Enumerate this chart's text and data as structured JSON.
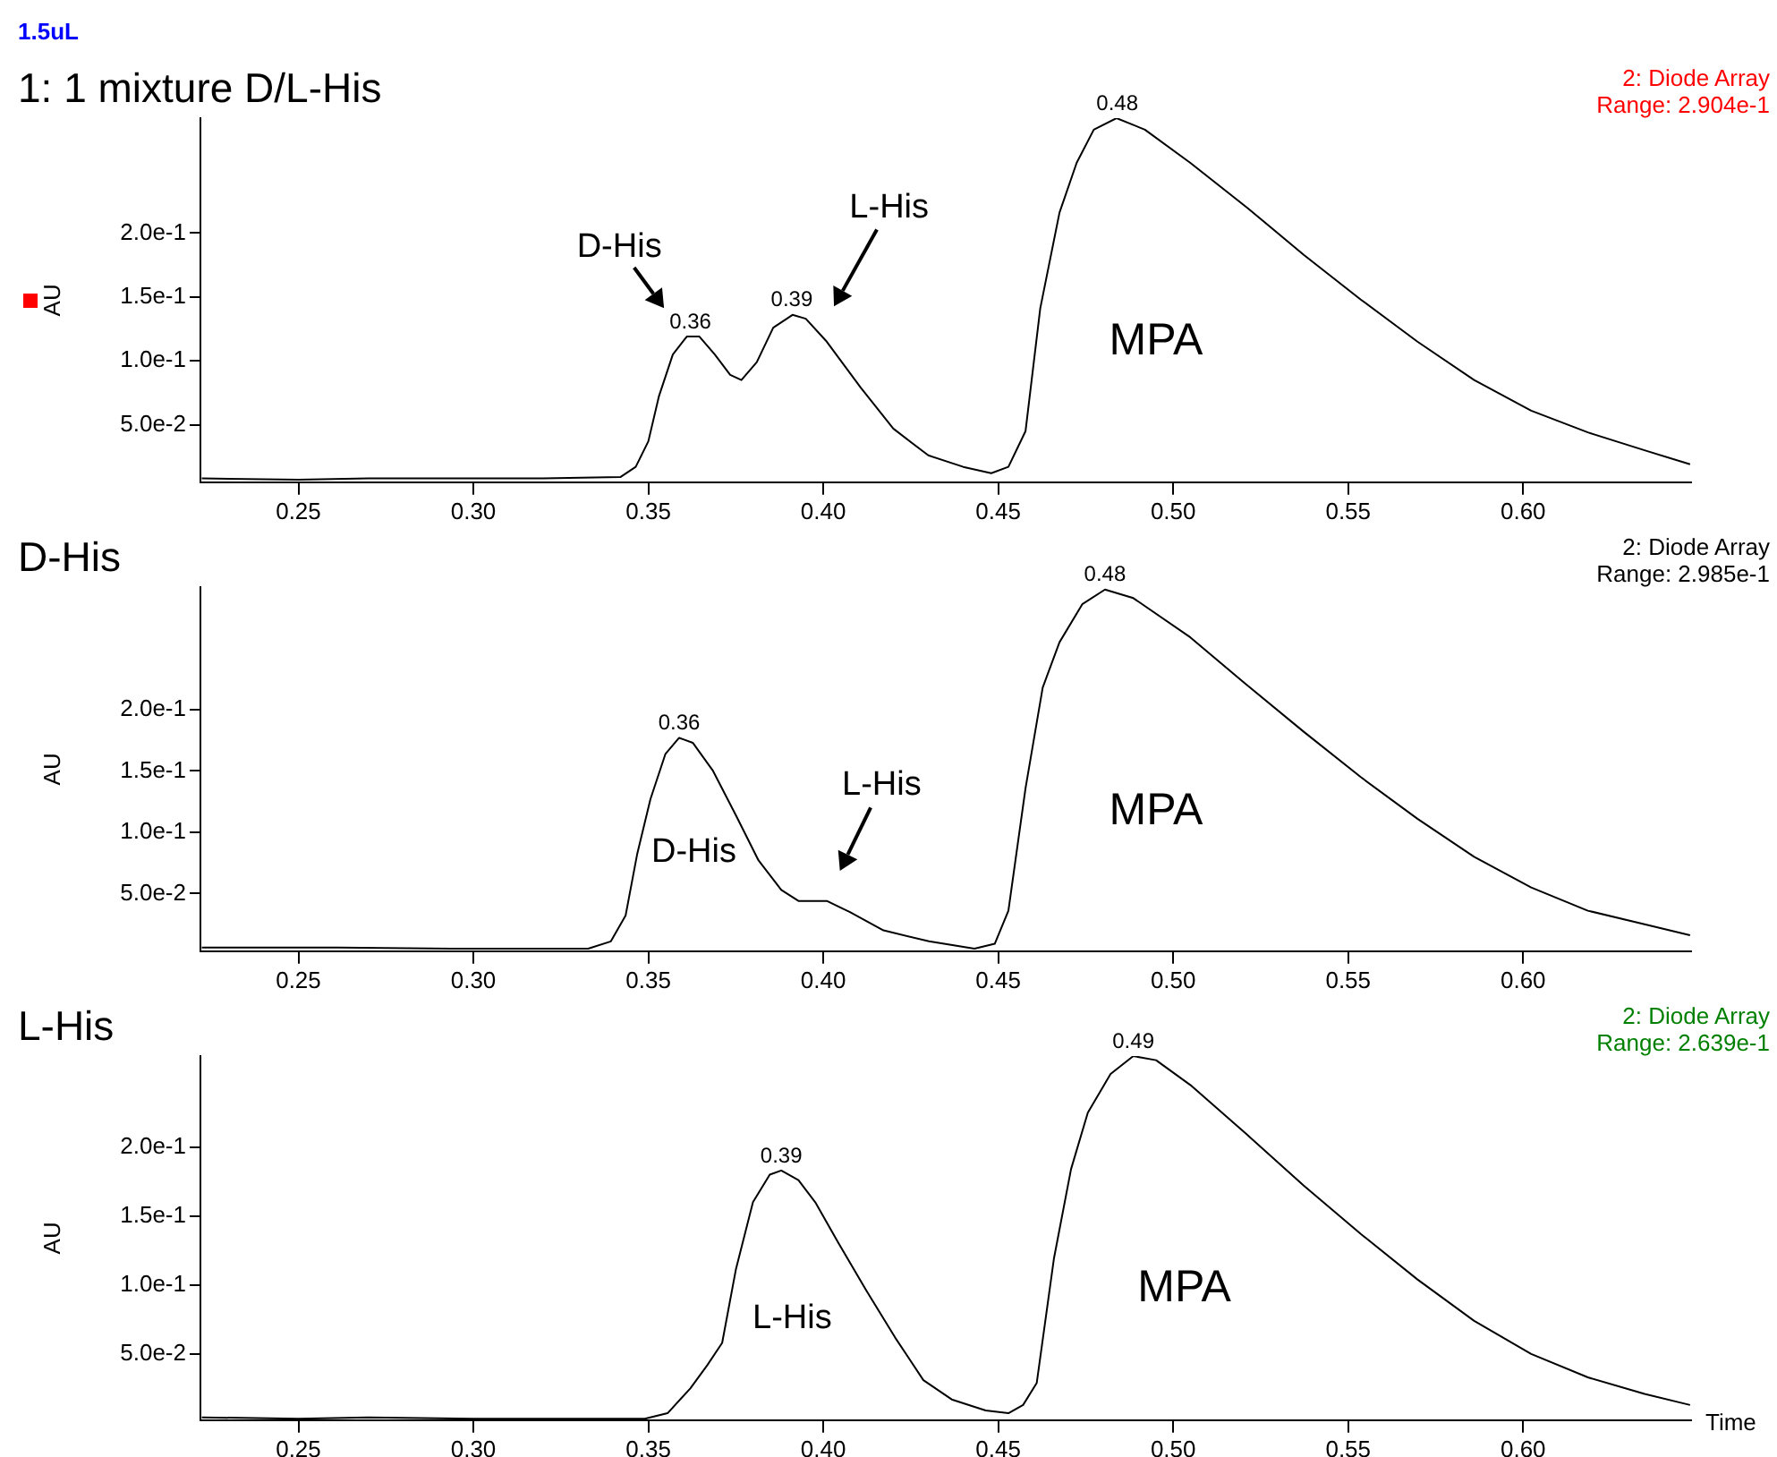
{
  "chart_data": [
    {
      "type": "line",
      "title": "1: 1 mixture D/L-His",
      "ylabel": "AU",
      "grid": false,
      "legend": false,
      "annotations": [
        "1.5uL",
        "2: Diode Array",
        "Range: 2.904e-1",
        "D-His",
        "L-His",
        {
          "text": "0.36",
          "x": 0.362,
          "y": 0.119
        },
        {
          "text": "0.39",
          "x": 0.391,
          "y": 0.136
        },
        {
          "text": "0.48",
          "x": 0.484,
          "y": 0.29
        },
        "MPA"
      ],
      "xlim": [
        0.222,
        0.648
      ],
      "ylim": [
        0.005,
        0.29
      ],
      "xticks": [
        {
          "value": 0.25,
          "label": "0.25"
        },
        {
          "value": 0.3,
          "label": "0.30"
        },
        {
          "value": 0.35,
          "label": "0.35"
        },
        {
          "value": 0.4,
          "label": "0.40"
        },
        {
          "value": 0.45,
          "label": "0.45"
        },
        {
          "value": 0.5,
          "label": "0.50"
        },
        {
          "value": 0.55,
          "label": "0.55"
        },
        {
          "value": 0.6,
          "label": "0.60"
        }
      ],
      "yticks": [
        {
          "value": 0.05,
          "label": "5.0e-2"
        },
        {
          "value": 0.1,
          "label": "1.0e-1"
        },
        {
          "value": 0.15,
          "label": "1.5e-1"
        },
        {
          "value": 0.2,
          "label": "2.0e-1"
        }
      ],
      "series": [
        {
          "color": "#000000",
          "x": [
            0.2224,
            0.25,
            0.27,
            0.3,
            0.32,
            0.342,
            0.3464,
            0.35,
            0.353,
            0.357,
            0.361,
            0.3646,
            0.369,
            0.3734,
            0.3766,
            0.381,
            0.3857,
            0.3912,
            0.395,
            0.401,
            0.4107,
            0.42,
            0.43,
            0.44,
            0.448,
            0.4529,
            0.4578,
            0.462,
            0.4675,
            0.4724,
            0.4773,
            0.4838,
            0.4919,
            0.5049,
            0.5211,
            0.5373,
            0.5536,
            0.5698,
            0.586,
            0.6023,
            0.6185,
            0.6347,
            0.6477
          ],
          "values": [
            0.008,
            0.007,
            0.008,
            0.008,
            0.008,
            0.009,
            0.017,
            0.037,
            0.072,
            0.105,
            0.119,
            0.119,
            0.105,
            0.089,
            0.085,
            0.099,
            0.126,
            0.136,
            0.133,
            0.115,
            0.079,
            0.047,
            0.026,
            0.017,
            0.012,
            0.017,
            0.045,
            0.141,
            0.216,
            0.255,
            0.281,
            0.29,
            0.281,
            0.255,
            0.22,
            0.183,
            0.148,
            0.115,
            0.085,
            0.061,
            0.044,
            0.03,
            0.019
          ]
        }
      ]
    },
    {
      "type": "line",
      "title": "D-His",
      "ylabel": "AU",
      "grid": false,
      "legend": false,
      "annotations": [
        "2: Diode Array",
        "Range: 2.985e-1",
        {
          "text": "0.36",
          "x": 0.3588,
          "y": 0.177
        },
        {
          "text": "0.48",
          "x": 0.4805,
          "y": 0.298
        },
        "D-His",
        "L-His",
        "MPA"
      ],
      "xlim": [
        0.222,
        0.648
      ],
      "ylim": [
        0.003,
        0.3
      ],
      "xticks": [
        {
          "value": 0.25,
          "label": "0.25"
        },
        {
          "value": 0.3,
          "label": "0.30"
        },
        {
          "value": 0.35,
          "label": "0.35"
        },
        {
          "value": 0.4,
          "label": "0.40"
        },
        {
          "value": 0.45,
          "label": "0.45"
        },
        {
          "value": 0.5,
          "label": "0.50"
        },
        {
          "value": 0.55,
          "label": "0.55"
        },
        {
          "value": 0.6,
          "label": "0.60"
        }
      ],
      "yticks": [
        {
          "value": 0.05,
          "label": "5.0e-2"
        },
        {
          "value": 0.1,
          "label": "1.0e-1"
        },
        {
          "value": 0.15,
          "label": "1.5e-1"
        },
        {
          "value": 0.2,
          "label": "2.0e-1"
        }
      ],
      "series": [
        {
          "color": "#000000",
          "x": [
            0.2224,
            0.2614,
            0.2938,
            0.3328,
            0.3393,
            0.3435,
            0.3468,
            0.3506,
            0.3549,
            0.3588,
            0.3627,
            0.3685,
            0.375,
            0.3815,
            0.388,
            0.3929,
            0.401,
            0.4075,
            0.4172,
            0.4302,
            0.4432,
            0.449,
            0.4529,
            0.4578,
            0.4627,
            0.4675,
            0.474,
            0.4805,
            0.4886,
            0.5049,
            0.5211,
            0.5373,
            0.5536,
            0.5698,
            0.586,
            0.6023,
            0.6185,
            0.6347,
            0.6477
          ],
          "values": [
            0.006,
            0.006,
            0.005,
            0.005,
            0.011,
            0.032,
            0.082,
            0.127,
            0.164,
            0.177,
            0.173,
            0.15,
            0.114,
            0.077,
            0.053,
            0.044,
            0.044,
            0.035,
            0.02,
            0.011,
            0.005,
            0.009,
            0.036,
            0.136,
            0.218,
            0.255,
            0.286,
            0.298,
            0.291,
            0.259,
            0.22,
            0.182,
            0.145,
            0.111,
            0.08,
            0.055,
            0.036,
            0.025,
            0.016
          ]
        }
      ]
    },
    {
      "type": "line",
      "title": "L-His",
      "xlabel": "Time",
      "ylabel": "AU",
      "grid": false,
      "legend": false,
      "annotations": [
        "2: Diode Array",
        "Range: 2.639e-1",
        {
          "text": "0.39",
          "x": 0.388,
          "y": 0.183
        },
        {
          "text": "0.49",
          "x": 0.4886,
          "y": 0.266
        },
        "L-His",
        "MPA"
      ],
      "xlim": [
        0.222,
        0.648
      ],
      "ylim": [
        0.002,
        0.266
      ],
      "xticks": [
        {
          "value": 0.25,
          "label": "0.25"
        },
        {
          "value": 0.3,
          "label": "0.30"
        },
        {
          "value": 0.35,
          "label": "0.35"
        },
        {
          "value": 0.4,
          "label": "0.40"
        },
        {
          "value": 0.45,
          "label": "0.45"
        },
        {
          "value": 0.5,
          "label": "0.50"
        },
        {
          "value": 0.55,
          "label": "0.55"
        },
        {
          "value": 0.6,
          "label": "0.60"
        }
      ],
      "yticks": [
        {
          "value": 0.05,
          "label": "5.0e-2"
        },
        {
          "value": 0.1,
          "label": "1.0e-1"
        },
        {
          "value": 0.15,
          "label": "1.5e-1"
        },
        {
          "value": 0.2,
          "label": "2.0e-1"
        }
      ],
      "series": [
        {
          "color": "#000000",
          "x": [
            0.2224,
            0.25,
            0.27,
            0.3,
            0.33,
            0.349,
            0.3555,
            0.362,
            0.3669,
            0.3711,
            0.375,
            0.3799,
            0.3847,
            0.388,
            0.3929,
            0.3977,
            0.4042,
            0.4123,
            0.4205,
            0.4286,
            0.4367,
            0.4464,
            0.4529,
            0.4571,
            0.461,
            0.4659,
            0.4708,
            0.4756,
            0.4821,
            0.4886,
            0.4951,
            0.5049,
            0.5211,
            0.5373,
            0.5536,
            0.5698,
            0.586,
            0.6023,
            0.6185,
            0.6347,
            0.6477
          ],
          "values": [
            0.004,
            0.003,
            0.004,
            0.003,
            0.003,
            0.003,
            0.007,
            0.025,
            0.042,
            0.058,
            0.111,
            0.16,
            0.18,
            0.183,
            0.176,
            0.16,
            0.131,
            0.096,
            0.062,
            0.031,
            0.017,
            0.009,
            0.007,
            0.013,
            0.029,
            0.119,
            0.184,
            0.225,
            0.253,
            0.266,
            0.263,
            0.245,
            0.209,
            0.172,
            0.137,
            0.104,
            0.074,
            0.05,
            0.033,
            0.021,
            0.013
          ]
        }
      ]
    }
  ]
}
